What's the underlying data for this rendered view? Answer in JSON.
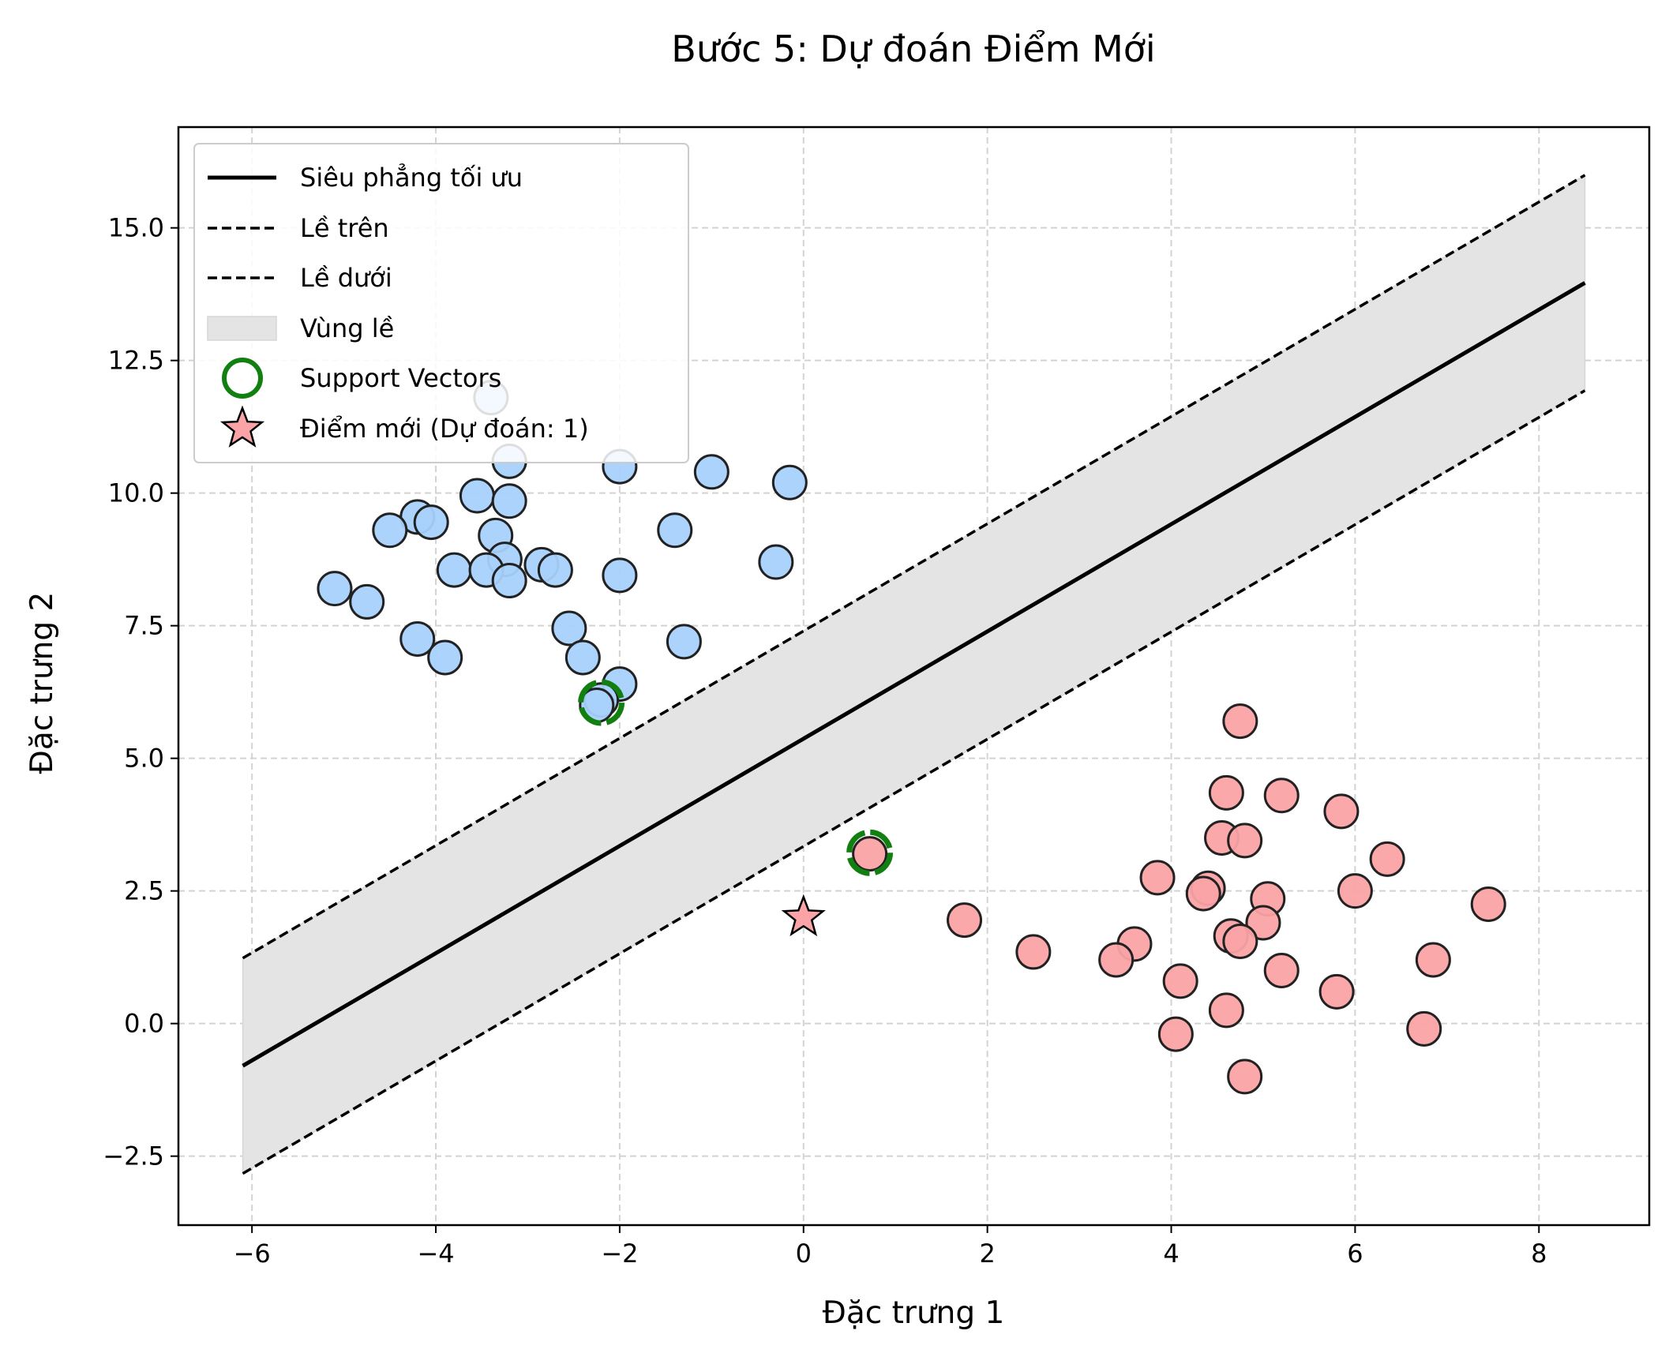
{
  "chart_data": {
    "type": "scatter",
    "title": "Bước 5: Dự đoán Điểm Mới",
    "xlabel": "Đặc trưng 1",
    "ylabel": "Đặc trưng 2",
    "xlim": [
      -6.8,
      9.2
    ],
    "ylim": [
      -3.8,
      16.9
    ],
    "x_ticks": [
      -6,
      -4,
      -2,
      0,
      2,
      4,
      6,
      8
    ],
    "y_ticks": [
      -2.5,
      0.0,
      2.5,
      5.0,
      7.5,
      10.0,
      12.5,
      15.0
    ],
    "x_tick_labels": [
      "−6",
      "−4",
      "−2",
      "0",
      "2",
      "4",
      "6",
      "8"
    ],
    "y_tick_labels": [
      "−2.5",
      "0.0",
      "2.5",
      "5.0",
      "7.5",
      "10.0",
      "12.5",
      "15.0"
    ],
    "grid": true,
    "legend_position": "upper-left",
    "colors": {
      "class_a": "#a8d1fb",
      "class_b": "#fba3a6",
      "support_vector": "#118011",
      "margin_fill": "#e4e4e4",
      "line": "#000000"
    },
    "hyperplane": {
      "label": "Siêu phẳng tối ưu",
      "x_range": [
        -6.1,
        8.5
      ],
      "slope": 1.011,
      "intercept": 5.37,
      "margin_offset": 2.03
    },
    "legend": [
      {
        "label": "Siêu phẳng tối ưu",
        "kind": "solid-line"
      },
      {
        "label": "Lề trên",
        "kind": "dashed-line"
      },
      {
        "label": "Lề dưới",
        "kind": "dashed-line"
      },
      {
        "label": "Vùng lề",
        "kind": "fill"
      },
      {
        "label": "Support Vectors",
        "kind": "ring"
      },
      {
        "label": "Điểm mới (Dự đoán: 1)",
        "kind": "star"
      }
    ],
    "series": [
      {
        "class": "class_a",
        "points": [
          [
            -3.4,
            11.8
          ],
          [
            -3.2,
            10.6
          ],
          [
            -2.0,
            10.5
          ],
          [
            -1.0,
            10.4
          ],
          [
            -0.15,
            10.2
          ],
          [
            -3.55,
            9.95
          ],
          [
            -3.2,
            9.85
          ],
          [
            -4.2,
            9.55
          ],
          [
            -4.05,
            9.45
          ],
          [
            -4.5,
            9.3
          ],
          [
            -3.35,
            9.2
          ],
          [
            -1.4,
            9.3
          ],
          [
            -3.25,
            8.75
          ],
          [
            -2.85,
            8.65
          ],
          [
            -2.7,
            8.55
          ],
          [
            -3.8,
            8.55
          ],
          [
            -3.45,
            8.55
          ],
          [
            -3.2,
            8.35
          ],
          [
            -2.0,
            8.45
          ],
          [
            -0.3,
            8.7
          ],
          [
            -5.1,
            8.2
          ],
          [
            -4.75,
            7.95
          ],
          [
            -2.55,
            7.45
          ],
          [
            -4.2,
            7.25
          ],
          [
            -1.3,
            7.2
          ],
          [
            -3.9,
            6.9
          ],
          [
            -2.4,
            6.9
          ],
          [
            -2.0,
            6.4
          ],
          [
            -2.2,
            6.1
          ],
          [
            -2.25,
            6.0
          ]
        ]
      },
      {
        "class": "class_b",
        "points": [
          [
            4.75,
            5.7
          ],
          [
            4.6,
            4.35
          ],
          [
            5.2,
            4.3
          ],
          [
            5.85,
            4.0
          ],
          [
            4.55,
            3.5
          ],
          [
            4.8,
            3.45
          ],
          [
            0.72,
            3.2
          ],
          [
            6.35,
            3.1
          ],
          [
            3.85,
            2.75
          ],
          [
            4.4,
            2.55
          ],
          [
            4.35,
            2.45
          ],
          [
            6.0,
            2.5
          ],
          [
            5.05,
            2.35
          ],
          [
            7.45,
            2.25
          ],
          [
            1.75,
            1.95
          ],
          [
            5.0,
            1.9
          ],
          [
            4.65,
            1.65
          ],
          [
            4.75,
            1.55
          ],
          [
            3.6,
            1.5
          ],
          [
            2.5,
            1.35
          ],
          [
            3.4,
            1.2
          ],
          [
            6.85,
            1.2
          ],
          [
            5.2,
            1.0
          ],
          [
            4.1,
            0.8
          ],
          [
            5.8,
            0.6
          ],
          [
            4.6,
            0.25
          ],
          [
            6.75,
            -0.1
          ],
          [
            4.05,
            -0.2
          ],
          [
            4.8,
            -1.0
          ]
        ]
      }
    ],
    "support_vectors": [
      [
        -2.2,
        6.05
      ],
      [
        0.72,
        3.22
      ]
    ],
    "new_point": {
      "x": 0.0,
      "y": 2.0,
      "prediction": 1
    }
  }
}
